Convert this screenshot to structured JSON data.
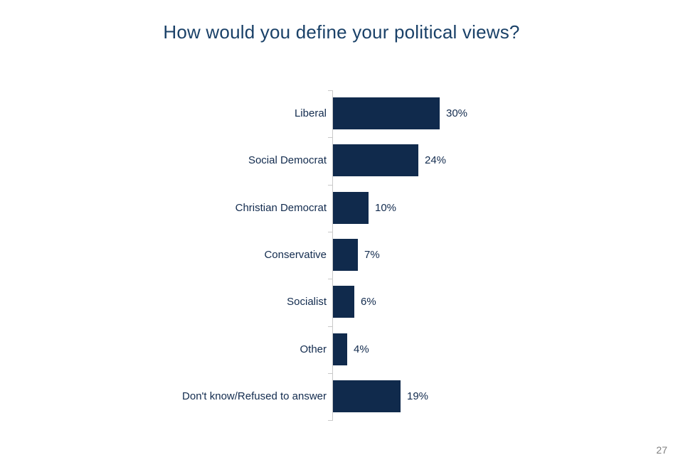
{
  "title": {
    "text": "How would you define your political views?"
  },
  "footer": {
    "page_number": "27"
  },
  "chart_data": {
    "type": "bar",
    "orientation": "horizontal",
    "title": "How would you define your political views?",
    "categories": [
      "Liberal",
      "Social Democrat",
      "Christian Democrat",
      "Conservative",
      "Socialist",
      "Other",
      "Don't know/Refused to answer"
    ],
    "values": [
      30,
      24,
      10,
      7,
      6,
      4,
      19
    ],
    "unit": "%",
    "value_labels": [
      "30%",
      "24%",
      "10%",
      "7%",
      "6%",
      "4%",
      "19%"
    ],
    "xlabel": "",
    "ylabel": "",
    "legend": "none",
    "grid": "off",
    "axis": {
      "value_axis_visible": false,
      "category_axis_line": true,
      "tick_marks": "category-boundaries"
    },
    "colors": {
      "bar": "#102A4C",
      "category_label": "#122B4E",
      "value_label": "#122B4E",
      "title": "#1A4168",
      "axis_line": "#C9C9C9",
      "page_number": "#7F7F7F"
    }
  }
}
